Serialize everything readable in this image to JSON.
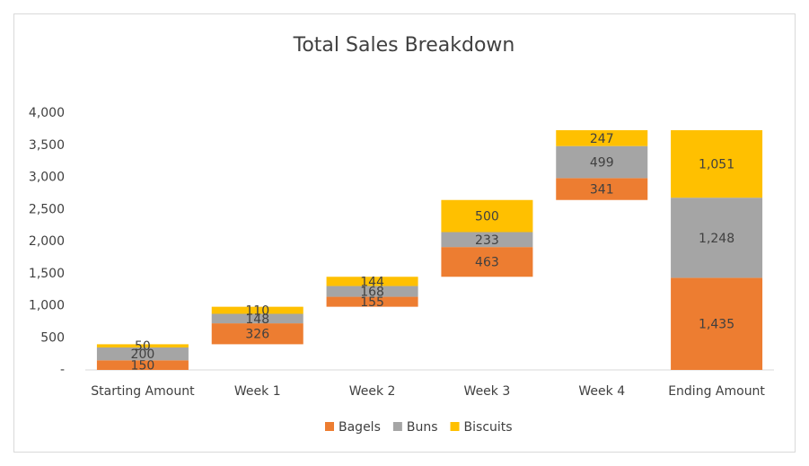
{
  "chart_data": {
    "type": "waterfall",
    "title": "Total Sales Breakdown",
    "categories": [
      "Starting Amount",
      "Week 1",
      "Week 2",
      "Week 3",
      "Week 4",
      "Ending Amount"
    ],
    "totals": [
      5
    ],
    "series": [
      {
        "name": "Bagels",
        "color": "#ed7d31",
        "values": [
          150,
          326,
          155,
          463,
          341,
          1435
        ],
        "value_labels": [
          "150",
          "326",
          "155",
          "463",
          "341",
          "1,435"
        ]
      },
      {
        "name": "Buns",
        "color": "#a5a5a5",
        "values": [
          200,
          148,
          168,
          233,
          499,
          1248
        ],
        "value_labels": [
          "200",
          "148",
          "168",
          "233",
          "499",
          "1,248"
        ]
      },
      {
        "name": "Biscuits",
        "color": "#ffc000",
        "values": [
          50,
          110,
          144,
          500,
          247,
          1051
        ],
        "value_labels": [
          "50",
          "110",
          "144",
          "500",
          "247",
          "1,051"
        ]
      }
    ],
    "ylim": [
      0,
      4000
    ],
    "yticks": [
      {
        "value": 0,
        "label": "-"
      },
      500,
      {
        "value": 1000,
        "label": "1,000"
      },
      {
        "value": 1500,
        "label": "1,500"
      },
      {
        "value": 2000,
        "label": "2,000"
      },
      {
        "value": 2500,
        "label": "2,500"
      },
      {
        "value": 3000,
        "label": "3,000"
      },
      {
        "value": 3500,
        "label": "3,500"
      },
      {
        "value": 4000,
        "label": "4,000"
      }
    ],
    "grid": false,
    "legend": "bottom"
  }
}
